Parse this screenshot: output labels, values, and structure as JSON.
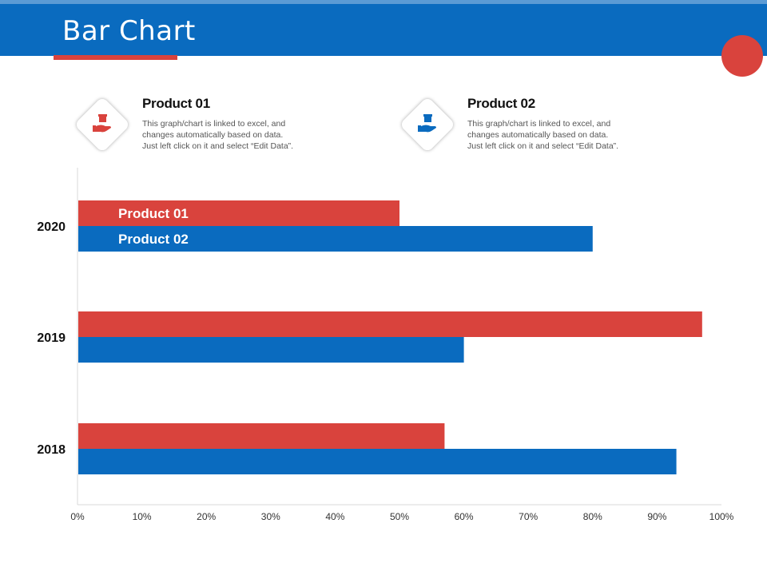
{
  "header": {
    "title": "Bar Chart"
  },
  "colors": {
    "product_01": "#d9433d",
    "product_02": "#0a6bbf",
    "header": "#0a6bbf"
  },
  "legend": [
    {
      "icon": "hand-holding-gift-icon",
      "title": "Product 01",
      "lines": [
        "This graph/chart is linked to excel, and",
        "changes automatically based on data.",
        "Just left click on it and select “Edit Data”."
      ]
    },
    {
      "icon": "hand-holding-gift-icon",
      "title": "Product 02",
      "lines": [
        "This graph/chart is linked to excel, and",
        "changes automatically based on data.",
        "Just left click on it and select “Edit Data”."
      ]
    }
  ],
  "chart_data": {
    "type": "bar",
    "orientation": "horizontal",
    "title": "Bar Chart",
    "categories": [
      "2020",
      "2019",
      "2018"
    ],
    "series": [
      {
        "name": "Product 01",
        "values": [
          50,
          97,
          57
        ]
      },
      {
        "name": "Product 02",
        "values": [
          80,
          60,
          93
        ]
      }
    ],
    "xlim": [
      0,
      100
    ],
    "xticks": [
      "0%",
      "10%",
      "20%",
      "30%",
      "40%",
      "50%",
      "60%",
      "70%",
      "80%",
      "90%",
      "100%"
    ],
    "data_labels": [
      {
        "category": "2020",
        "series": "Product 01",
        "text": "Product 01"
      },
      {
        "category": "2020",
        "series": "Product 02",
        "text": "Product 02"
      }
    ],
    "grid": false
  }
}
